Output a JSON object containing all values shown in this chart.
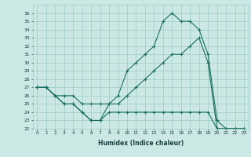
{
  "xlabel": "Humidex (Indice chaleur)",
  "x": [
    0,
    1,
    2,
    3,
    4,
    5,
    6,
    7,
    8,
    9,
    10,
    11,
    12,
    13,
    14,
    15,
    16,
    17,
    18,
    19,
    20,
    21,
    22,
    23
  ],
  "line_max": [
    27,
    27,
    26,
    25,
    25,
    24,
    23,
    23,
    25,
    26,
    29,
    30,
    31,
    32,
    35,
    36,
    35,
    35,
    34,
    31,
    23,
    22,
    22,
    22
  ],
  "line_mid": [
    27,
    27,
    26,
    26,
    26,
    25,
    25,
    25,
    25,
    25,
    26,
    27,
    28,
    29,
    30,
    31,
    31,
    32,
    33,
    30,
    22,
    22,
    22,
    22
  ],
  "line_min": [
    27,
    27,
    26,
    25,
    25,
    24,
    23,
    23,
    24,
    24,
    24,
    24,
    24,
    24,
    24,
    24,
    24,
    24,
    24,
    24,
    22,
    22,
    22,
    22
  ],
  "ylim_min": 22,
  "ylim_max": 37,
  "ytick_min": 22,
  "ytick_max": 36,
  "bg_color": "#cce8e4",
  "line_color": "#1a6e62",
  "grid_color": "#9eccc6",
  "xlabel_color": "#1a4040",
  "tick_color": "#1a4040"
}
